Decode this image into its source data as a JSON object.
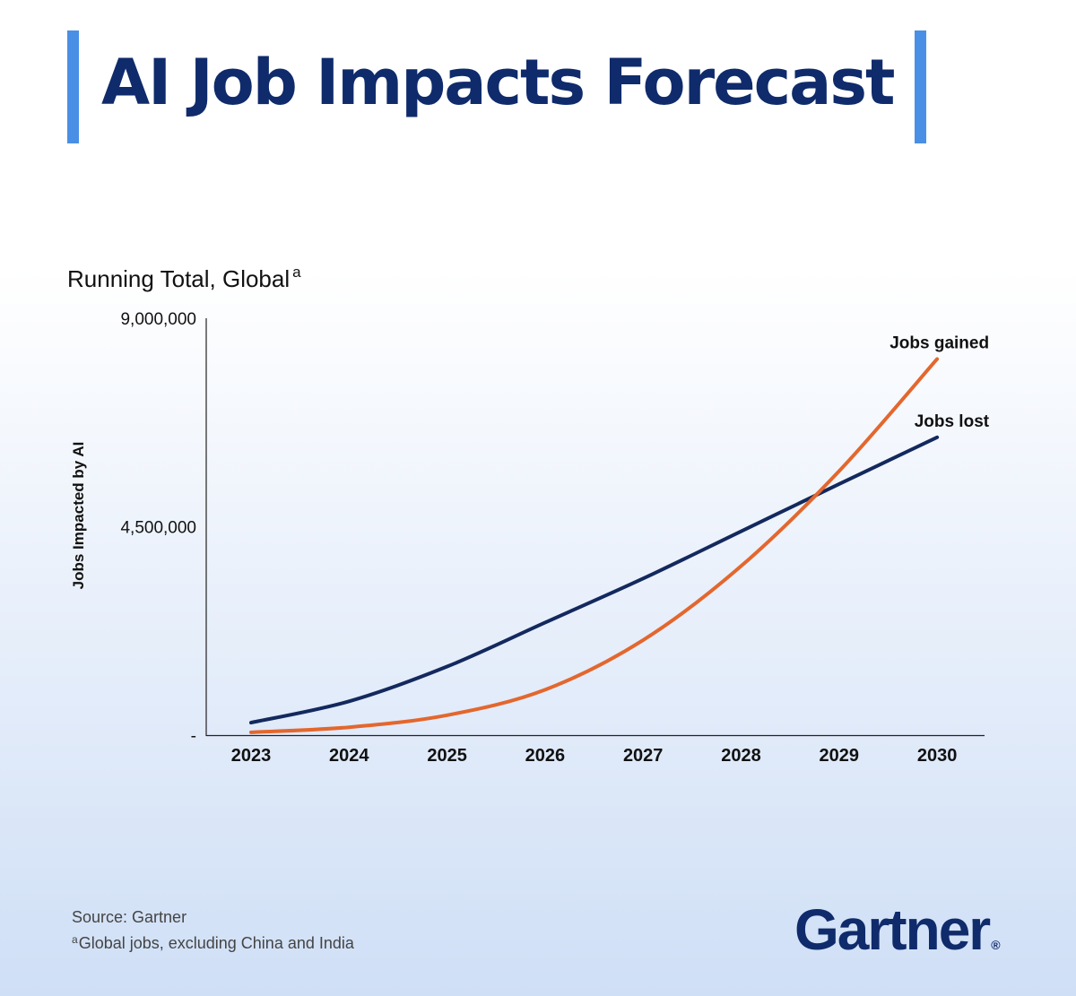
{
  "header": {
    "title": "AI Job Impacts Forecast"
  },
  "chart_data": {
    "type": "line",
    "title": "Running Total, Global",
    "title_note": "a",
    "ylabel": "Jobs Impacted by AI",
    "xlabel": "",
    "x": [
      "2023",
      "2024",
      "2025",
      "2026",
      "2027",
      "2028",
      "2029",
      "2030"
    ],
    "ylim": [
      0,
      9000000
    ],
    "y_ticks": [
      {
        "value": 9000000,
        "label": "9,000,000"
      },
      {
        "value": 4500000,
        "label": "4,500,000"
      },
      {
        "value": 0,
        "label": "-"
      }
    ],
    "grid": false,
    "legend": "inline labels at line ends",
    "series": [
      {
        "name": "Jobs lost",
        "color": "#13295e",
        "values": [
          270000,
          730000,
          1480000,
          2430000,
          3380000,
          4400000,
          5420000,
          6430000
        ]
      },
      {
        "name": "Jobs gained",
        "color": "#e3672e",
        "values": [
          60000,
          170000,
          430000,
          980000,
          2050000,
          3650000,
          5700000,
          8120000
        ]
      }
    ]
  },
  "footer": {
    "source": "Source: Gartner",
    "footnote_marker": "a",
    "footnote": "Global jobs, excluding China and India",
    "logo": "Gartner",
    "logo_mark": "®"
  }
}
